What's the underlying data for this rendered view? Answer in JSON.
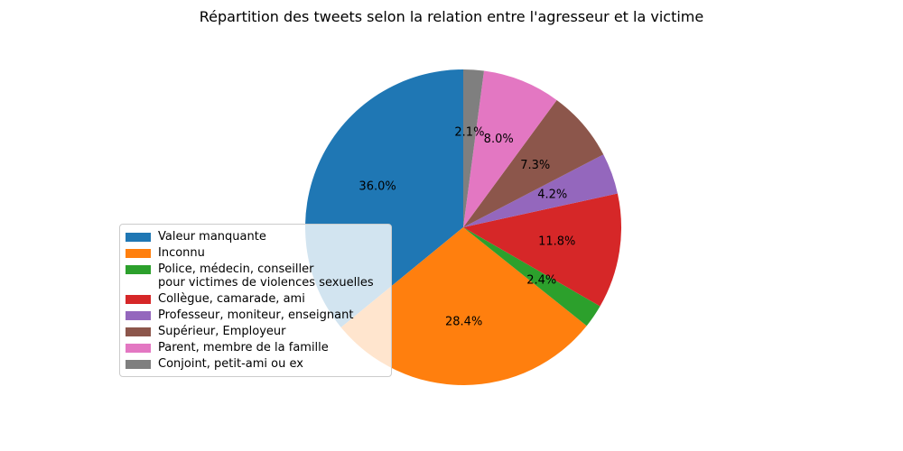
{
  "chart_data": {
    "type": "pie",
    "title": "Répartition des tweets selon la relation entre l'agresseur et la victime",
    "labels": [
      "Valeur manquante",
      "Inconnu",
      "Police, médecin, conseiller\npour victimes de violences sexuelles",
      "Collègue, camarade, ami",
      "Professeur, moniteur, enseignant",
      "Supérieur, Employeur",
      "Parent, membre de la famille",
      "Conjoint, petit-ami ou ex"
    ],
    "values": [
      36.0,
      28.4,
      2.4,
      11.8,
      4.2,
      7.3,
      8.0,
      2.1
    ],
    "percent_labels": [
      "36.0%",
      "28.4%",
      "2.4%",
      "11.8%",
      "4.2%",
      "7.3%",
      "8.0%",
      "2.1%"
    ],
    "colors": [
      "#1f77b4",
      "#ff7f0e",
      "#2ca02c",
      "#d62728",
      "#9467bd",
      "#8c564b",
      "#e377c2",
      "#7f7f7f"
    ],
    "start_angle_deg": 90,
    "direction": "counterclockwise",
    "legend_position": "lower-left"
  }
}
